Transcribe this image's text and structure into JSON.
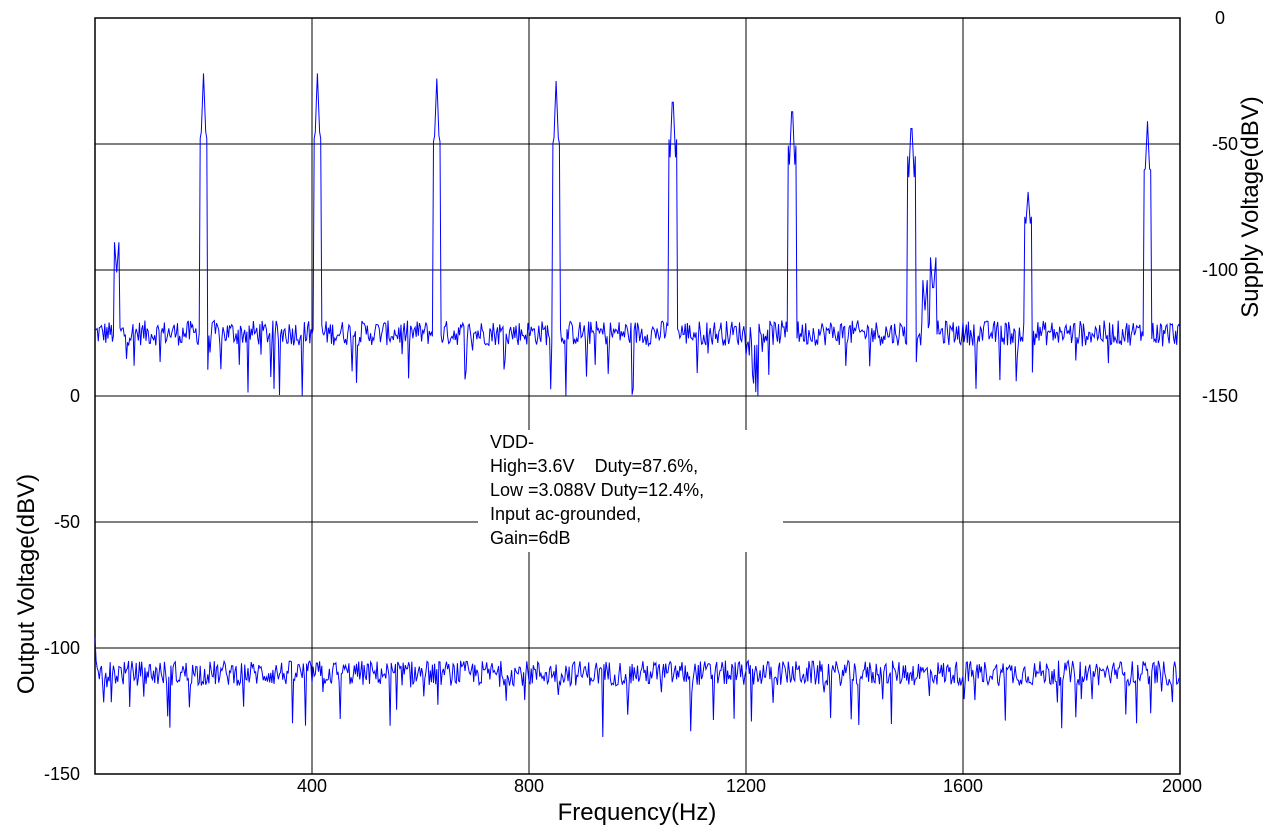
{
  "chart_data": {
    "type": "line",
    "xlabel": "Frequency(Hz)",
    "xlim": [
      0,
      2000
    ],
    "x_ticks": [
      "400",
      "800",
      "1200",
      "1600",
      "2000"
    ],
    "top_panel": {
      "ylabel": "Supply Voltage(dBV)",
      "ylim": [
        -150,
        0
      ],
      "y_ticks": [
        "0",
        "-50",
        "-100",
        "-150"
      ],
      "noise_floor_dBV": -125,
      "series": [
        {
          "color": "#0000ff",
          "peaks": [
            {
              "x": 200,
              "y": -22
            },
            {
              "x": 410,
              "y": -22
            },
            {
              "x": 630,
              "y": -24
            },
            {
              "x": 850,
              "y": -25
            },
            {
              "x": 1065,
              "y": -28
            },
            {
              "x": 1285,
              "y": -32
            },
            {
              "x": 1505,
              "y": -39
            },
            {
              "x": 1720,
              "y": -69
            },
            {
              "x": 1940,
              "y": -41
            }
          ],
          "minor_peaks": [
            {
              "x": 40,
              "y": -101
            },
            {
              "x": 1530,
              "y": -116
            },
            {
              "x": 1545,
              "y": -110
            }
          ]
        }
      ]
    },
    "bottom_panel": {
      "ylabel": "Output Voltage(dBV)",
      "ylim": [
        -150,
        0
      ],
      "y_ticks": [
        "0",
        "-50",
        "-100",
        "-150"
      ],
      "noise_floor_dBV": -110,
      "series": [
        {
          "color": "#0000ff",
          "start": {
            "x": 0,
            "y": -96
          }
        }
      ]
    },
    "grid": true,
    "annotation": [
      "VDD-",
      "High=3.6V    Duty=87.6%,",
      "Low =3.088V Duty=12.4%,",
      "Input ac-grounded,",
      "Gain=6dB"
    ]
  }
}
